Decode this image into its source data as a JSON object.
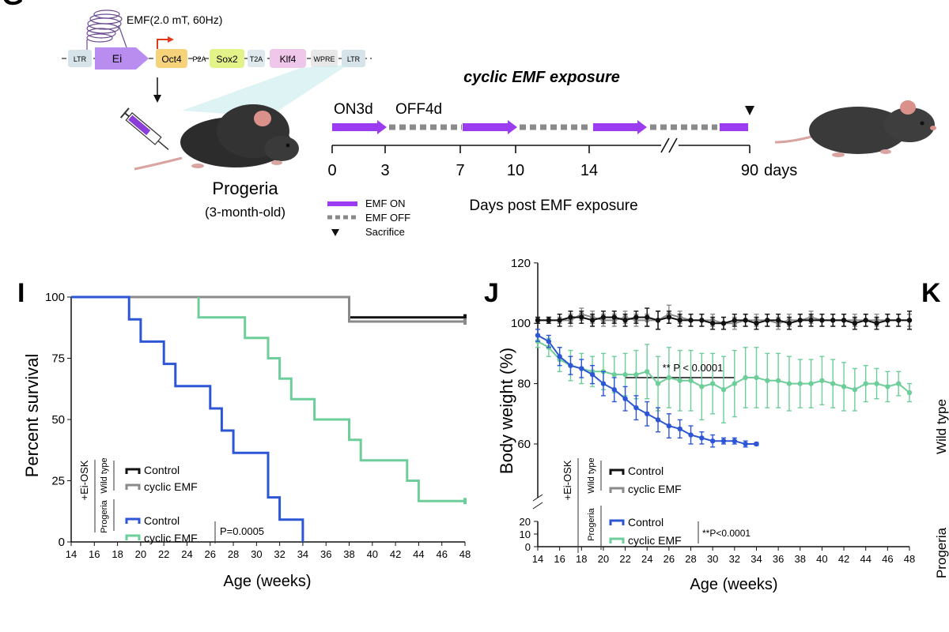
{
  "panel_letters": {
    "g": "G",
    "i": "I",
    "j": "J",
    "k": "K"
  },
  "construct": {
    "emf_label": "EMF(2.0 mT, 60Hz)",
    "parts": [
      "LTR",
      "Ei",
      "Oct4",
      "P2A",
      "Sox2",
      "T2A",
      "Klf4",
      "WPRE",
      "LTR"
    ]
  },
  "mouse_left": {
    "name": "Progeria",
    "age": "(3-month-old)"
  },
  "timeline": {
    "title": "cyclic EMF exposure",
    "on_label": "ON3d",
    "off_label": "OFF4d",
    "ticks": [
      "0",
      "3",
      "7",
      "10",
      "14",
      "90"
    ],
    "unit": "days",
    "xlabel": "Days post EMF exposure",
    "legend": [
      "EMF ON",
      "EMF OFF",
      "Sacrifice"
    ]
  },
  "colors": {
    "black": "#111111",
    "gray": "#8a8a8a",
    "blue": "#2d56d6",
    "green": "#6dce9a",
    "purple": "#9b3cf0"
  },
  "side_text": {
    "k1": "Wild type",
    "k2": "Progeria"
  },
  "chart_data": [
    {
      "type": "line",
      "subtype": "kaplan-meier",
      "ylabel": "Percent survival",
      "xlabel": "Age (weeks)",
      "xlim": [
        14,
        48
      ],
      "ylim": [
        0,
        100
      ],
      "xticks": [
        14,
        16,
        18,
        20,
        22,
        24,
        26,
        28,
        30,
        32,
        34,
        36,
        38,
        40,
        42,
        44,
        46,
        48
      ],
      "yticks": [
        0,
        25,
        50,
        75,
        100
      ],
      "legend": {
        "outer": "+Ei-OSK",
        "groups": [
          "Wild type",
          "Progeria"
        ],
        "entries": [
          "Control",
          "cyclic EMF",
          "Control",
          "cyclic EMF"
        ],
        "pvalue": "P=0.0005"
      },
      "series": [
        {
          "name": "Control",
          "group": "Wild type",
          "color": "#111111",
          "points": [
            [
              14,
              100
            ],
            [
              38,
              100
            ],
            [
              38,
              91.7
            ],
            [
              48,
              91.7
            ]
          ]
        },
        {
          "name": "cyclic EMF",
          "group": "Wild type",
          "color": "#8a8a8a",
          "points": [
            [
              14,
              100
            ],
            [
              38,
              100
            ],
            [
              38,
              90
            ],
            [
              48,
              90
            ]
          ]
        },
        {
          "name": "Control",
          "group": "Progeria",
          "color": "#2d56d6",
          "points": [
            [
              14,
              100
            ],
            [
              19,
              100
            ],
            [
              19,
              90.9
            ],
            [
              20,
              90.9
            ],
            [
              20,
              81.8
            ],
            [
              22,
              81.8
            ],
            [
              22,
              72.7
            ],
            [
              23,
              72.7
            ],
            [
              23,
              63.6
            ],
            [
              26,
              63.6
            ],
            [
              26,
              54.5
            ],
            [
              27,
              54.5
            ],
            [
              27,
              45.5
            ],
            [
              28,
              45.5
            ],
            [
              28,
              36.4
            ],
            [
              31,
              36.4
            ],
            [
              31,
              18.2
            ],
            [
              32,
              18.2
            ],
            [
              32,
              9.1
            ],
            [
              34,
              9.1
            ],
            [
              34,
              0
            ]
          ]
        },
        {
          "name": "cyclic EMF",
          "group": "Progeria",
          "color": "#6dce9a",
          "points": [
            [
              25,
              100
            ],
            [
              25,
              91.7
            ],
            [
              29,
              91.7
            ],
            [
              29,
              83.3
            ],
            [
              31,
              83.3
            ],
            [
              31,
              75
            ],
            [
              32,
              75
            ],
            [
              32,
              66.7
            ],
            [
              33,
              66.7
            ],
            [
              33,
              58.3
            ],
            [
              35,
              58.3
            ],
            [
              35,
              50
            ],
            [
              38,
              50
            ],
            [
              38,
              41.7
            ],
            [
              39,
              41.7
            ],
            [
              39,
              33.3
            ],
            [
              43,
              33.3
            ],
            [
              43,
              25
            ],
            [
              44,
              25
            ],
            [
              44,
              16.7
            ],
            [
              48,
              16.7
            ]
          ]
        }
      ]
    },
    {
      "type": "line",
      "subtype": "errorbar",
      "ylabel": "Body weight (%)",
      "xlabel": "Age (weeks)",
      "xlim": [
        14,
        48
      ],
      "ylim": [
        0,
        120
      ],
      "axis_break": [
        20,
        50
      ],
      "xticks": [
        14,
        16,
        18,
        20,
        22,
        24,
        26,
        28,
        30,
        32,
        34,
        36,
        38,
        40,
        42,
        44,
        46,
        48
      ],
      "yticks": [
        0,
        10,
        20,
        60,
        80,
        100,
        120
      ],
      "annotation": {
        "text": "** P < 0.0001",
        "x_from": 22,
        "x_to": 32
      },
      "legend": {
        "outer": "+Ei-OSK",
        "groups": [
          "Wild type",
          "Progeria"
        ],
        "entries": [
          "Control",
          "cyclic EMF",
          "Control",
          "cyclic EMF"
        ],
        "pvalue": "**P<0.0001"
      },
      "series": [
        {
          "name": "Control",
          "group": "Wild type",
          "color": "#111111",
          "x": [
            14,
            15,
            16,
            17,
            18,
            19,
            20,
            21,
            22,
            23,
            24,
            25,
            26,
            27,
            28,
            29,
            30,
            31,
            32,
            33,
            34,
            35,
            36,
            37,
            38,
            39,
            40,
            41,
            42,
            43,
            44,
            45,
            46,
            47,
            48
          ],
          "y": [
            101,
            101,
            101,
            102,
            102,
            101,
            102,
            102,
            101,
            102,
            102,
            101,
            102,
            101,
            101,
            101,
            100,
            100,
            101,
            101,
            100,
            101,
            101,
            100,
            101,
            101,
            101,
            101,
            101,
            100,
            101,
            100,
            101,
            101,
            101
          ],
          "err": [
            1,
            1,
            2,
            2,
            2,
            2,
            2,
            2,
            2,
            2,
            3,
            3,
            2,
            2,
            2,
            2,
            2,
            2,
            2,
            2,
            2,
            2,
            2,
            2,
            2,
            2,
            2,
            2,
            2,
            2,
            2,
            2,
            2,
            2,
            3
          ]
        },
        {
          "name": "cyclic EMF",
          "group": "Wild type",
          "color": "#8a8a8a",
          "x": [
            14,
            15,
            16,
            17,
            18,
            19,
            20,
            21,
            22,
            23,
            24,
            25,
            26,
            27,
            28,
            29,
            30,
            31,
            32,
            33,
            34,
            35,
            36,
            37,
            38,
            39,
            40,
            41,
            42,
            43,
            44,
            45,
            46,
            47,
            48
          ],
          "y": [
            101,
            101,
            101,
            101,
            103,
            102,
            101,
            101,
            102,
            101,
            101,
            101,
            103,
            102,
            101,
            101,
            101,
            100,
            100,
            101,
            101,
            101,
            100,
            101,
            101,
            102,
            101,
            101,
            101,
            101,
            101,
            101,
            101,
            101,
            101
          ],
          "err": [
            1,
            1,
            1,
            2,
            2,
            2,
            2,
            2,
            2,
            2,
            2,
            3,
            3,
            2,
            2,
            2,
            2,
            2,
            2,
            2,
            2,
            2,
            2,
            2,
            2,
            2,
            2,
            2,
            2,
            2,
            2,
            2,
            2,
            2,
            2
          ]
        },
        {
          "name": "Control",
          "group": "Progeria",
          "color": "#2d56d6",
          "x": [
            14,
            15,
            16,
            17,
            18,
            19,
            20,
            21,
            22,
            23,
            24,
            25,
            26,
            27,
            28,
            29,
            30,
            31,
            32,
            33,
            34
          ],
          "y": [
            96,
            94,
            89,
            86,
            85,
            83,
            80,
            78,
            75,
            72,
            70,
            68,
            66,
            65,
            63,
            62,
            61,
            61,
            61,
            60,
            60
          ],
          "err": [
            2,
            2,
            3,
            3,
            3,
            3,
            4,
            4,
            4,
            4,
            4,
            4,
            4,
            3,
            3,
            2,
            2,
            1,
            1,
            1,
            0.5
          ]
        },
        {
          "name": "cyclic EMF",
          "group": "Progeria",
          "color": "#6dce9a",
          "x": [
            14,
            15,
            16,
            17,
            18,
            19,
            20,
            21,
            22,
            23,
            24,
            25,
            26,
            27,
            28,
            29,
            30,
            31,
            32,
            33,
            34,
            35,
            36,
            37,
            38,
            39,
            40,
            41,
            42,
            43,
            44,
            45,
            46,
            47,
            48
          ],
          "y": [
            94,
            92,
            88,
            86,
            85,
            84,
            84,
            83,
            83,
            83,
            84,
            80,
            82,
            81,
            81,
            79,
            80,
            78,
            80,
            82,
            82,
            81,
            81,
            80,
            80,
            80,
            81,
            80,
            79,
            78,
            80,
            80,
            79,
            80,
            77
          ],
          "err": [
            2,
            3,
            4,
            5,
            5,
            5,
            6,
            6,
            7,
            8,
            9,
            9,
            10,
            10,
            10,
            11,
            10,
            11,
            11,
            10,
            10,
            9,
            9,
            9,
            8,
            8,
            8,
            8,
            8,
            7,
            6,
            5,
            5,
            4,
            3
          ]
        }
      ]
    }
  ]
}
